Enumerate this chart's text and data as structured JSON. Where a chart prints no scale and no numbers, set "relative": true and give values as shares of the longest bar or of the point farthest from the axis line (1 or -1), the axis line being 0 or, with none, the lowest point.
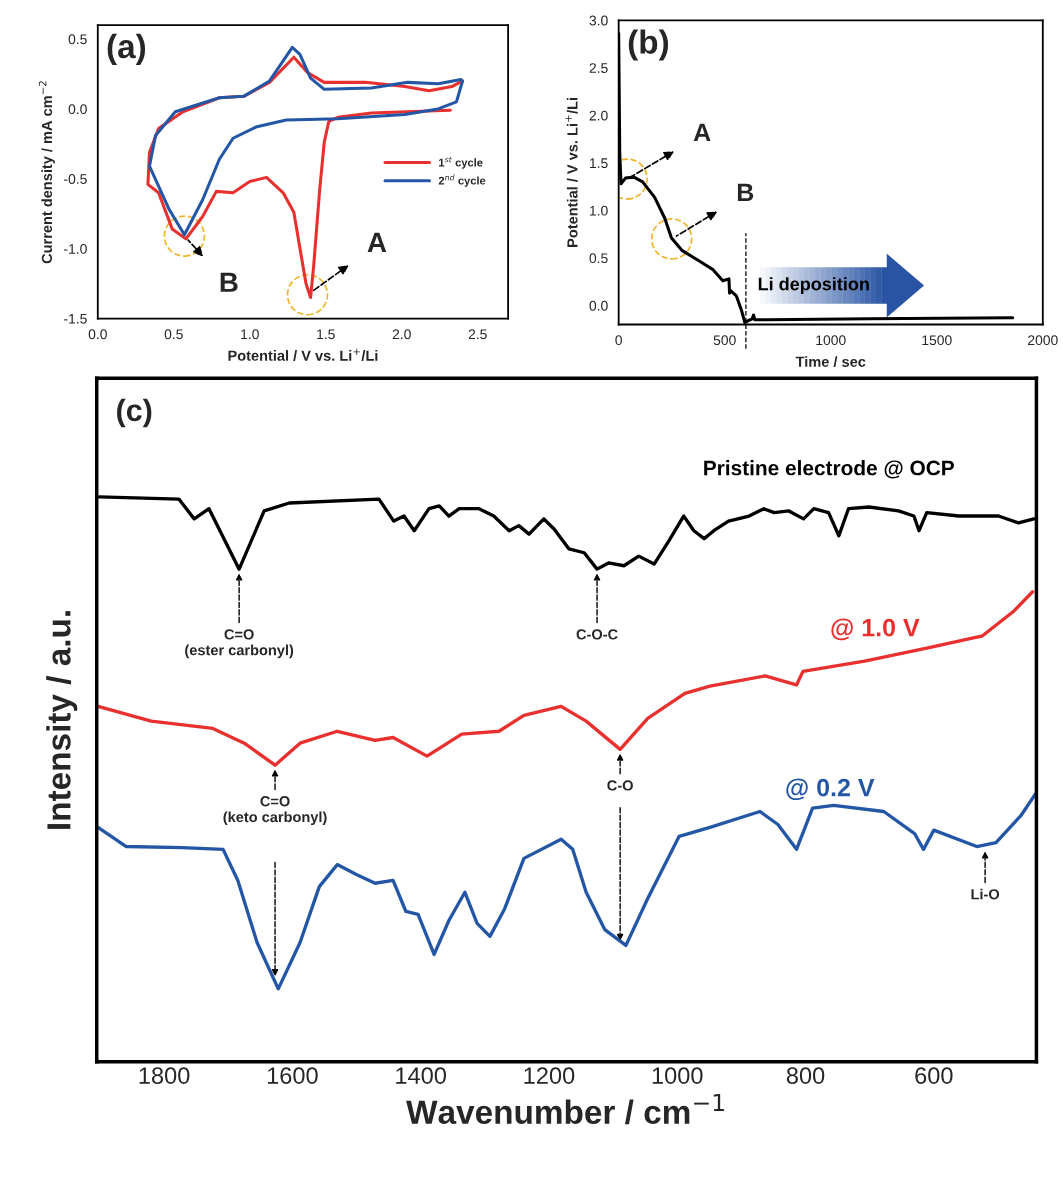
{
  "chart_data": [
    {
      "type": "line",
      "xlabel": "Potential / V vs. Li$^{+}$/Li",
      "ylabel": "Current density / mA cm$^{−2}$",
      "xlim": [
        0,
        2.7
      ],
      "ylim": [
        -1.5,
        0.6
      ],
      "xticks": [
        {
          "value": 0,
          "label": "0.0"
        },
        0.5,
        {
          "value": 1,
          "label": "1.0"
        },
        1.5,
        {
          "value": 2,
          "label": "2.0"
        },
        2.5
      ],
      "yticks": [
        -1.5,
        {
          "value": -1,
          "label": "-1.0"
        },
        -0.5,
        {
          "value": 0,
          "label": "0.0"
        },
        0.5
      ],
      "grid": false,
      "legend": "right",
      "marker": "none",
      "line_style": "solid",
      "series": [
        {
          "name": "1$^{st}$ cycle",
          "color": "#e8312f",
          "x": [
            2.32,
            1.8,
            1.58,
            1.52,
            1.49,
            1.46,
            1.42,
            1.4,
            1.37,
            1.34,
            1.29,
            1.22,
            1.11,
            1.0,
            0.89,
            0.78,
            0.69,
            0.58,
            0.49,
            0.4,
            0.33,
            0.34,
            0.4,
            0.56,
            0.8,
            0.96,
            1.13,
            1.29,
            1.38,
            1.49,
            1.76,
            2.02,
            2.18,
            2.33,
            2.4
          ],
          "values": [
            -0.01,
            -0.03,
            -0.06,
            -0.09,
            -0.24,
            -0.58,
            -1.13,
            -1.35,
            -1.25,
            -1.06,
            -0.74,
            -0.6,
            -0.49,
            -0.52,
            -0.6,
            -0.59,
            -0.77,
            -0.93,
            -0.86,
            -0.6,
            -0.54,
            -0.31,
            -0.14,
            -0.02,
            0.08,
            0.09,
            0.19,
            0.37,
            0.26,
            0.19,
            0.19,
            0.16,
            0.13,
            0.16,
            0.2
          ]
        },
        {
          "name": "2$^{nd}$ cycle",
          "color": "#2456a6",
          "x": [
            2.4,
            2.36,
            2.24,
            2.02,
            1.58,
            1.24,
            1.04,
            0.89,
            0.8,
            0.69,
            0.57,
            0.47,
            0.34,
            0.38,
            0.51,
            0.8,
            0.96,
            1.13,
            1.28,
            1.33,
            1.4,
            1.49,
            1.8,
            2.04,
            2.24,
            2.39
          ],
          "values": [
            0.2,
            0.05,
            0.0,
            -0.04,
            -0.07,
            -0.08,
            -0.13,
            -0.21,
            -0.36,
            -0.65,
            -0.9,
            -0.72,
            -0.41,
            -0.19,
            -0.02,
            0.08,
            0.09,
            0.2,
            0.44,
            0.39,
            0.22,
            0.14,
            0.15,
            0.19,
            0.18,
            0.21
          ]
        }
      ],
      "annotations": [
        "(a)",
        {
          "text": "A",
          "x": 1.38,
          "y": -1.33
        },
        {
          "text": "B",
          "x": 0.57,
          "y": -0.91
        }
      ]
    },
    {
      "type": "line",
      "xlabel": "Time / sec",
      "ylabel": "Potential / V vs. Li$^{+}$/Li",
      "xlim": [
        0,
        2000
      ],
      "ylim": [
        -0.2,
        3.0
      ],
      "xticks": [
        0,
        500,
        1000,
        1500,
        2000
      ],
      "yticks": [
        {
          "value": 0,
          "label": "0.0"
        },
        0.5,
        {
          "value": 1,
          "label": "1.0"
        },
        1.5,
        {
          "value": 2,
          "label": "2.0"
        },
        2.5,
        {
          "value": 3,
          "label": "3.0"
        }
      ],
      "grid": false,
      "marker": "none",
      "line_style": "solid",
      "series": [
        {
          "color": "#000000",
          "x": [
            0,
            5,
            11,
            32,
            72,
            113,
            169,
            217,
            249,
            298,
            378,
            443,
            491,
            520,
            523,
            526,
            555,
            579,
            595,
            611,
            630,
            636,
            642,
            700,
            1183,
            1858
          ],
          "values": [
            2.86,
            1.61,
            1.28,
            1.34,
            1.35,
            1.3,
            1.14,
            0.92,
            0.71,
            0.58,
            0.47,
            0.38,
            0.26,
            0.28,
            0.13,
            0.16,
            0.1,
            -0.05,
            -0.18,
            -0.16,
            -0.14,
            -0.1,
            -0.15,
            -0.15,
            -0.14,
            -0.13
          ]
        }
      ],
      "ref_lines": [
        {
          "axis": "x",
          "value": 600,
          "color": "#000000",
          "line_style": "dashed"
        }
      ],
      "annotations": [
        "(b)",
        "Li deposition",
        {
          "text": "A",
          "x": 40,
          "y": 1.33
        },
        {
          "text": "B",
          "x": 250,
          "y": 0.7
        }
      ]
    },
    {
      "type": "line",
      "relative": true,
      "xlabel": "Wavenumber / cm$^{−1}$",
      "ylabel": "Intensity / a.u.",
      "xlim": [
        1905,
        440
      ],
      "xticks": [
        1800,
        1600,
        1400,
        1200,
        1000,
        800,
        600
      ],
      "tick_labels": "x",
      "grid": false,
      "marker": "none",
      "line_style": "solid",
      "series": [
        {
          "name": "Pristine electrode @ OCP",
          "color": "#000000",
          "x": [
            1901,
            1777,
            1753,
            1730,
            1683,
            1644,
            1605,
            1465,
            1442,
            1426,
            1410,
            1387,
            1371,
            1356,
            1340,
            1309,
            1286,
            1262,
            1247,
            1231,
            1208,
            1192,
            1169,
            1145,
            1125,
            1107,
            1083,
            1060,
            1036,
            1013,
            990,
            974,
            958,
            943,
            920,
            888,
            865,
            849,
            826,
            803,
            787,
            764,
            748,
            733,
            701,
            655,
            631,
            623,
            611,
            561,
            499,
            468,
            444
          ],
          "values": [
            1.0,
            0.996,
            0.961,
            0.979,
            0.872,
            0.975,
            0.989,
            0.996,
            0.957,
            0.966,
            0.94,
            0.979,
            0.984,
            0.966,
            0.979,
            0.979,
            0.966,
            0.94,
            0.949,
            0.934,
            0.961,
            0.943,
            0.908,
            0.901,
            0.872,
            0.883,
            0.878,
            0.895,
            0.881,
            0.922,
            0.966,
            0.94,
            0.926,
            0.94,
            0.957,
            0.966,
            0.979,
            0.972,
            0.975,
            0.961,
            0.979,
            0.972,
            0.931,
            0.979,
            0.982,
            0.975,
            0.966,
            0.94,
            0.972,
            0.966,
            0.966,
            0.954,
            0.961
          ]
        },
        {
          "name": "@ 1.0 V",
          "color": "#e8312f",
          "x": [
            1903,
            1820,
            1724,
            1675,
            1627,
            1588,
            1530,
            1471,
            1443,
            1390,
            1336,
            1278,
            1239,
            1181,
            1142,
            1089,
            1046,
            988,
            949,
            863,
            814,
            804,
            708,
            611,
            524,
            475,
            446
          ],
          "values": [
            0.629,
            0.603,
            0.59,
            0.564,
            0.525,
            0.564,
            0.585,
            0.569,
            0.574,
            0.541,
            0.58,
            0.585,
            0.613,
            0.629,
            0.603,
            0.553,
            0.608,
            0.652,
            0.665,
            0.683,
            0.667,
            0.691,
            0.709,
            0.732,
            0.754,
            0.798,
            0.832
          ]
        },
        {
          "name": "@ 0.2 V",
          "color": "#2456a6",
          "x": [
            1903,
            1859,
            1772,
            1708,
            1685,
            1655,
            1622,
            1588,
            1558,
            1530,
            1501,
            1471,
            1443,
            1423,
            1404,
            1379,
            1356,
            1331,
            1312,
            1292,
            1269,
            1239,
            1181,
            1163,
            1142,
            1113,
            1080,
            1046,
            997,
            949,
            871,
            843,
            814,
            789,
            756,
            678,
            630,
            616,
            600,
            533,
            503,
            464,
            441
          ],
          "values": [
            0.415,
            0.381,
            0.379,
            0.376,
            0.321,
            0.211,
            0.129,
            0.211,
            0.31,
            0.349,
            0.332,
            0.316,
            0.321,
            0.266,
            0.261,
            0.19,
            0.25,
            0.3,
            0.245,
            0.222,
            0.271,
            0.36,
            0.394,
            0.376,
            0.3,
            0.234,
            0.206,
            0.289,
            0.399,
            0.415,
            0.443,
            0.42,
            0.376,
            0.449,
            0.454,
            0.443,
            0.404,
            0.376,
            0.41,
            0.381,
            0.388,
            0.436,
            0.475
          ]
        }
      ],
      "annotations": [
        "(c)",
        {
          "text": "C=O\n(ester carbonyl)",
          "x": 1683,
          "y": 0.872
        },
        {
          "text": "C-O-C",
          "x": 1125,
          "y": 0.872
        },
        {
          "text": "C=O\n(keto carbonyl)",
          "x": 1627,
          "y": 0.525
        },
        {
          "text": "C-O",
          "x": 1089,
          "y": 0.553
        },
        {
          "text": "Li-O",
          "x": 520,
          "y": 0.38
        }
      ]
    }
  ]
}
